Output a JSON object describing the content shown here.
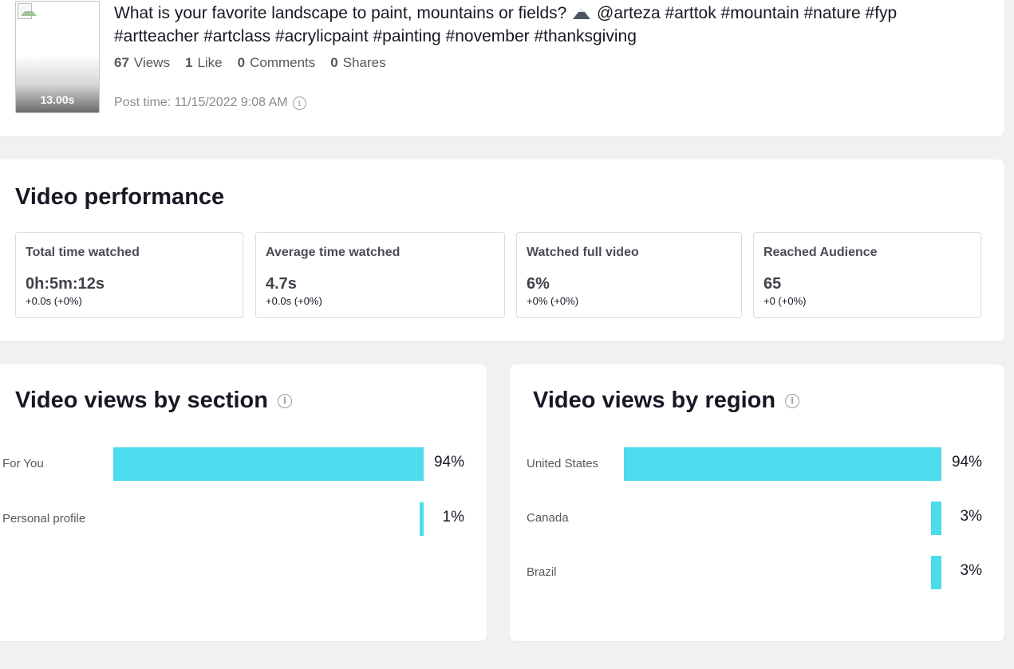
{
  "post": {
    "duration": "13.00s",
    "caption_before_icon": "What is your favorite landscape to paint, mountains or fields?",
    "caption_after_icon": "@arteza #arttok #mountain #nature #fyp #artteacher #artclass #acrylicpaint #painting #november #thanksgiving",
    "stats": [
      {
        "value": "67",
        "label": "Views"
      },
      {
        "value": "1",
        "label": "Like"
      },
      {
        "value": "0",
        "label": "Comments"
      },
      {
        "value": "0",
        "label": "Shares"
      }
    ],
    "post_time": "Post time: 11/15/2022 9:08 AM",
    "info_glyph": "i"
  },
  "performance": {
    "title": "Video performance",
    "metrics": [
      {
        "label": "Total time watched",
        "value": "0h:5m:12s",
        "delta": "+0.0s (+0%)"
      },
      {
        "label": "Average time watched",
        "value": "4.7s",
        "delta": "+0.0s (+0%)"
      },
      {
        "label": "Watched full video",
        "value": "6%",
        "delta": "+0% (+0%)"
      },
      {
        "label": "Reached Audience",
        "value": "65",
        "delta": "+0 (+0%)"
      }
    ]
  },
  "section_chart": {
    "title": "Video views by section",
    "rows": [
      {
        "label": "For You",
        "value": 94,
        "pct_label": "94%"
      },
      {
        "label": "Personal profile",
        "value": 1,
        "pct_label": "1%"
      }
    ]
  },
  "region_chart": {
    "title": "Video views by region",
    "rows": [
      {
        "label": "United States",
        "value": 94,
        "pct_label": "94%"
      },
      {
        "label": "Canada",
        "value": 3,
        "pct_label": "3%"
      },
      {
        "label": "Brazil",
        "value": 3,
        "pct_label": "3%"
      }
    ]
  },
  "chart_data": [
    {
      "type": "bar",
      "title": "Video views by section",
      "categories": [
        "For You",
        "Personal profile"
      ],
      "values": [
        94,
        1
      ],
      "ylim": [
        0,
        100
      ]
    },
    {
      "type": "bar",
      "title": "Video views by region",
      "categories": [
        "United States",
        "Canada",
        "Brazil"
      ],
      "values": [
        94,
        3,
        3
      ],
      "ylim": [
        0,
        100
      ]
    }
  ],
  "colors": {
    "bar": "#4cdced",
    "background": "#f1f1f2",
    "card": "#ffffff"
  }
}
